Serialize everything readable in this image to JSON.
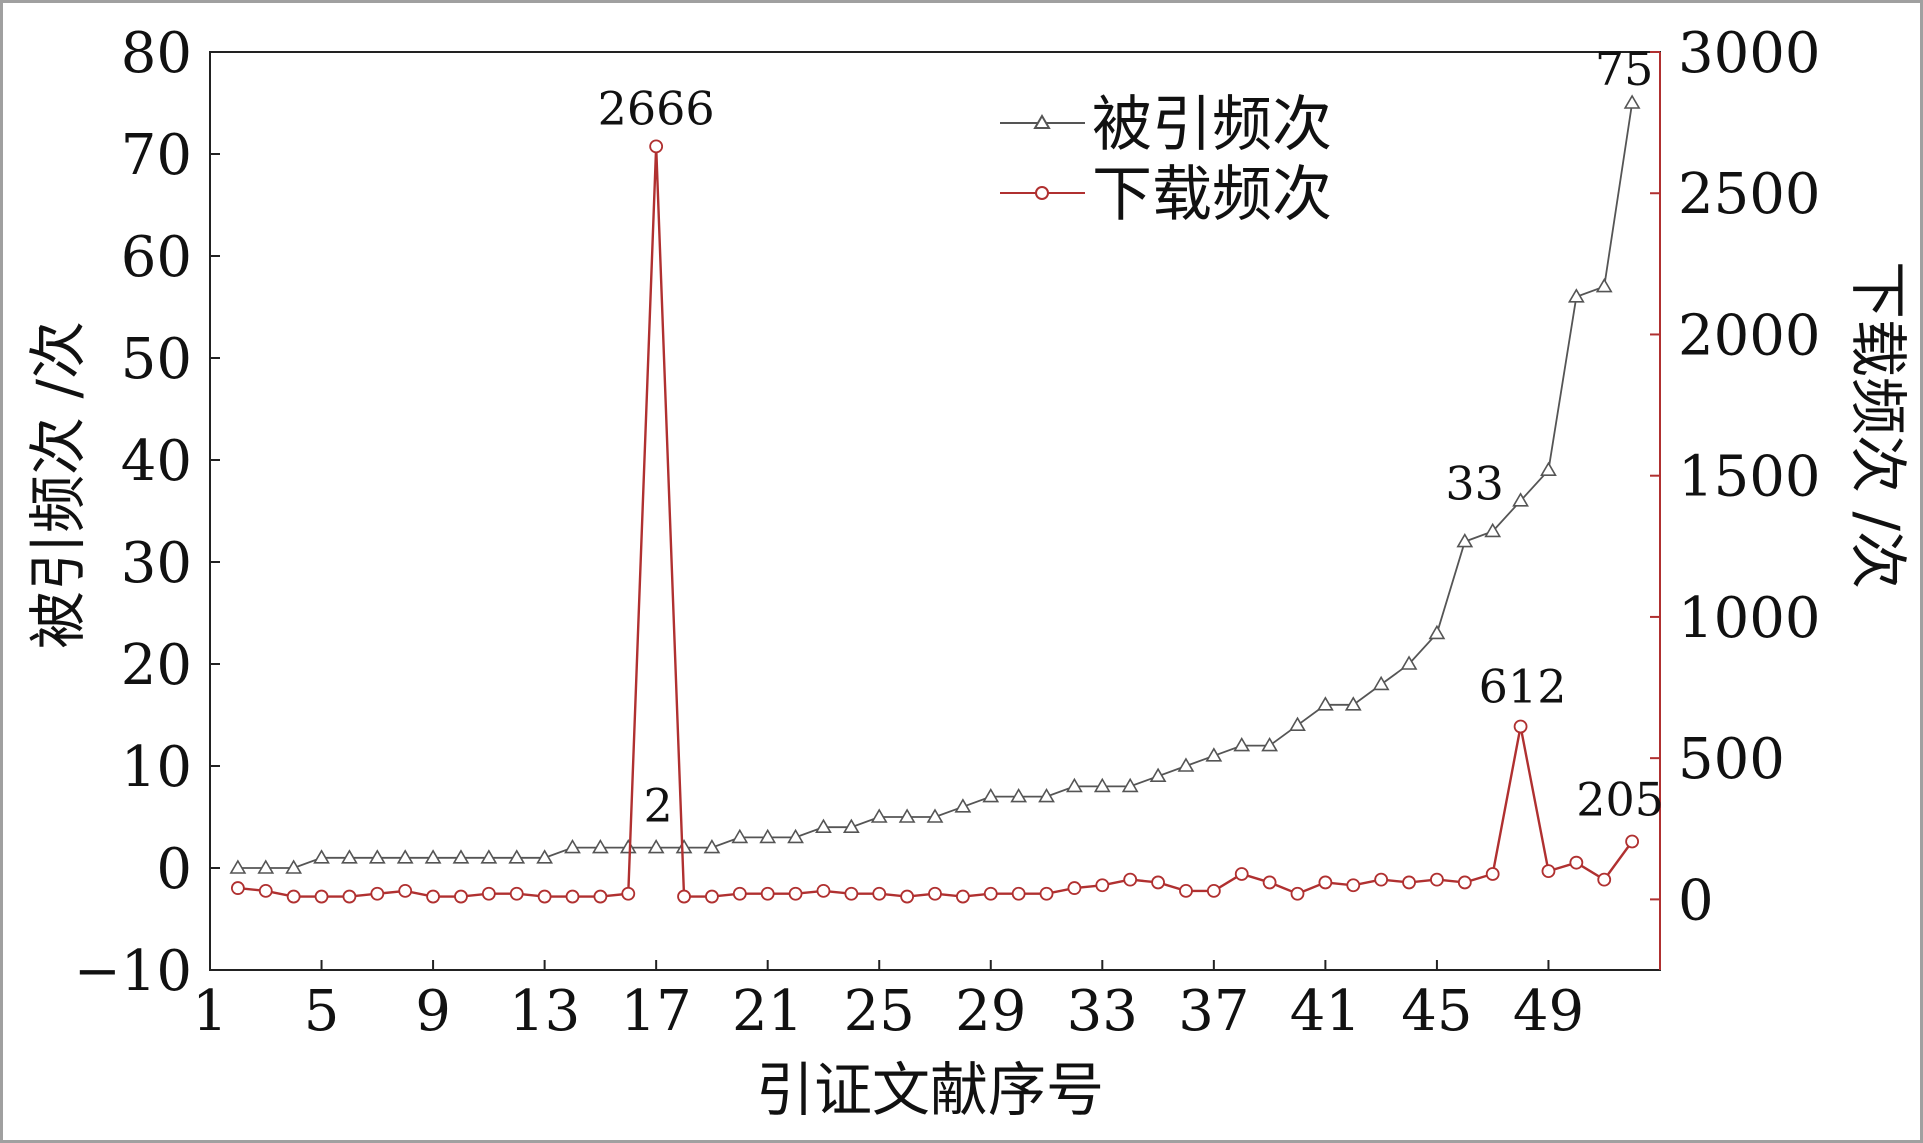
{
  "chart_data": {
    "type": "line",
    "xlabel": "引证文献序号",
    "ylabel_left": "被引频次 /次",
    "ylabel_right": "下载频次 /次",
    "xticks": [
      "1",
      "5",
      "9",
      "13",
      "17",
      "21",
      "25",
      "29",
      "33",
      "37",
      "41",
      "45",
      "49"
    ],
    "yticks_left": [
      "80",
      "70",
      "60",
      "50",
      "40",
      "30",
      "20",
      "10",
      "0",
      "−10"
    ],
    "yticks_right": [
      "3000",
      "2500",
      "2000",
      "1500",
      "1000",
      "500",
      "0"
    ],
    "xlim": [
      1,
      53
    ],
    "ylim_left": [
      -10,
      80
    ],
    "ylim_right": [
      -250,
      3000
    ],
    "x": [
      2,
      3,
      4,
      5,
      6,
      7,
      8,
      9,
      10,
      11,
      12,
      13,
      14,
      15,
      16,
      17,
      18,
      19,
      20,
      21,
      22,
      23,
      24,
      25,
      26,
      27,
      28,
      29,
      30,
      31,
      32,
      33,
      34,
      35,
      36,
      37,
      38,
      39,
      40,
      41,
      42,
      43,
      44,
      45,
      46,
      47,
      48,
      49,
      50,
      51,
      52
    ],
    "series": [
      {
        "name": "被引频次",
        "axis": "left",
        "color": "#555555",
        "marker": "triangle",
        "values": [
          0,
          0,
          0,
          1,
          1,
          1,
          1,
          1,
          1,
          1,
          1,
          1,
          2,
          2,
          2,
          2,
          2,
          2,
          3,
          3,
          3,
          4,
          4,
          5,
          5,
          5,
          6,
          7,
          7,
          7,
          8,
          8,
          8,
          9,
          10,
          11,
          12,
          12,
          14,
          16,
          16,
          18,
          20,
          23,
          32,
          33,
          36,
          39,
          56,
          57,
          75
        ]
      },
      {
        "name": "下载频次",
        "axis": "right",
        "color": "#b03030",
        "marker": "circle",
        "values": [
          40,
          30,
          10,
          10,
          10,
          20,
          30,
          10,
          10,
          20,
          20,
          10,
          10,
          10,
          20,
          2666,
          10,
          10,
          20,
          20,
          20,
          30,
          20,
          20,
          10,
          20,
          10,
          20,
          20,
          20,
          40,
          50,
          70,
          60,
          30,
          30,
          90,
          60,
          20,
          60,
          50,
          70,
          60,
          70,
          60,
          90,
          612,
          100,
          130,
          70,
          205
        ]
      }
    ],
    "annotations": [
      {
        "text": "2666",
        "x": 17,
        "y": 2666,
        "axis": "right"
      },
      {
        "text": "2",
        "x": 17,
        "y": 2,
        "axis": "left"
      },
      {
        "text": "33",
        "x": 47,
        "y": 33,
        "axis": "left"
      },
      {
        "text": "612",
        "x": 48,
        "y": 612,
        "axis": "right"
      },
      {
        "text": "205",
        "x": 52,
        "y": 205,
        "axis": "right"
      },
      {
        "text": "75",
        "x": 52,
        "y": 75,
        "axis": "left"
      }
    ],
    "legend_position": "top-center",
    "grid": false
  }
}
